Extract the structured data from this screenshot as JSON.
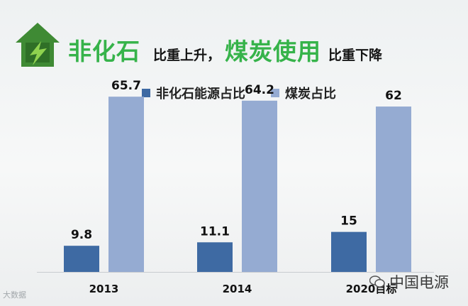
{
  "header": {
    "title_part1": "非化石",
    "title_part2": "比重上升，",
    "title_part3": "煤炭使用",
    "title_part4": "比重下降"
  },
  "colors": {
    "title_green": "#36b34a",
    "series_dark": "#3e6aa3",
    "series_light": "#95abd2",
    "logo_green": "#3f8a34",
    "logo_bolt": "#7ec846"
  },
  "chart_data": {
    "type": "bar",
    "categories": [
      "2013",
      "2014",
      "2020目标"
    ],
    "series": [
      {
        "name": "非化石能源占比",
        "values": [
          9.8,
          11.1,
          15
        ]
      },
      {
        "name": "煤炭占比",
        "values": [
          65.7,
          64.2,
          62
        ]
      }
    ],
    "value_labels": [
      [
        "9.8",
        "11.1",
        "15"
      ],
      [
        "65.7",
        "64.2",
        "62"
      ]
    ],
    "ylim": [
      0,
      70
    ],
    "grid": false,
    "legend_placement": "top"
  },
  "watermarks": {
    "left": "大数据",
    "right": "中国电源"
  },
  "icons": {
    "logo": "house-lightning-icon",
    "watermark": "wechat-icon"
  }
}
